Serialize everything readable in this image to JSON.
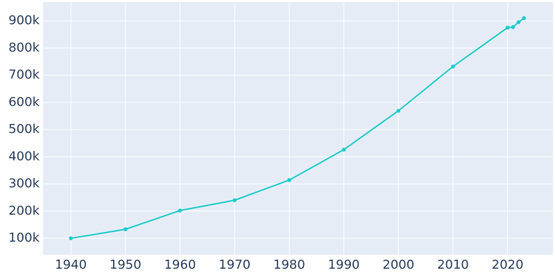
{
  "chart_data": {
    "type": "line",
    "x": [
      1940,
      1950,
      1960,
      1970,
      1980,
      1990,
      2000,
      2010,
      2020,
      2021,
      2022,
      2023
    ],
    "series": [
      {
        "color": "#1ccccc",
        "values": [
          100000,
          133000,
          202000,
          240000,
          314000,
          426000,
          569000,
          732000,
          875000,
          877000,
          895000,
          910000
        ]
      }
    ],
    "xlim": [
      1934.9,
      2028.3
    ],
    "ylim": [
      39000,
      969000
    ],
    "xticks": [
      1940,
      1950,
      1960,
      1970,
      1980,
      1990,
      2000,
      2010,
      2020
    ],
    "yticks": [
      {
        "value": 100000,
        "label": "100k"
      },
      {
        "value": 200000,
        "label": "200k"
      },
      {
        "value": 300000,
        "label": "300k"
      },
      {
        "value": 400000,
        "label": "400k"
      },
      {
        "value": 500000,
        "label": "500k"
      },
      {
        "value": 600000,
        "label": "600k"
      },
      {
        "value": 700000,
        "label": "700k"
      },
      {
        "value": 800000,
        "label": "800k"
      },
      {
        "value": 900000,
        "label": "900k"
      }
    ],
    "grid": true
  }
}
